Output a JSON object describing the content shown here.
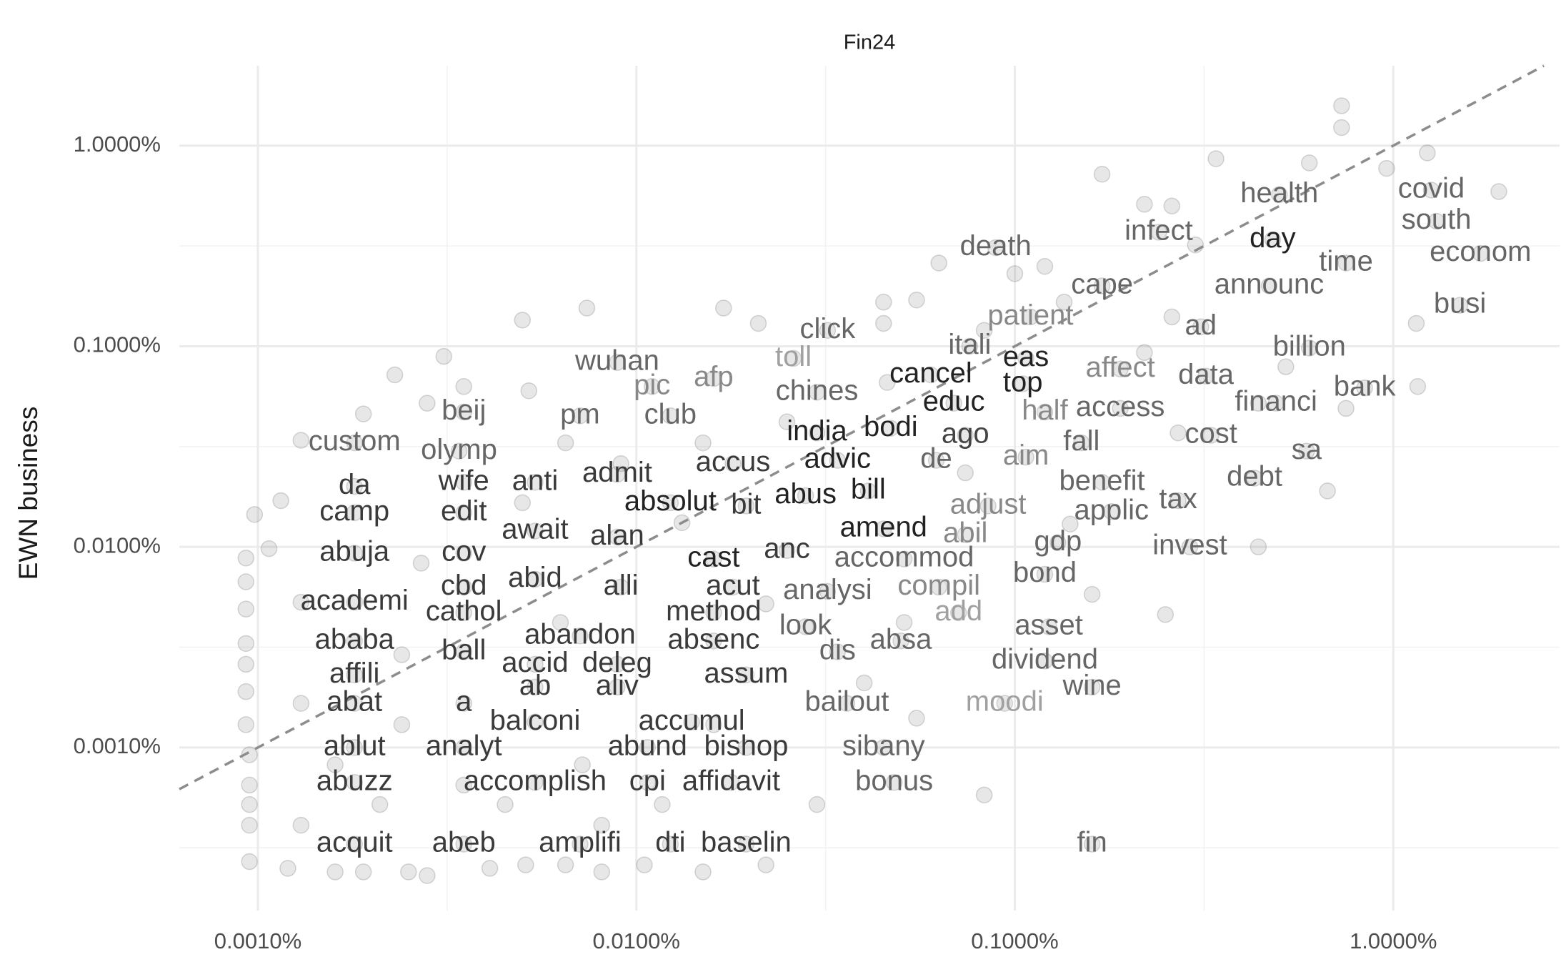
{
  "chart_data": {
    "type": "scatter",
    "title": "Fin24",
    "ylabel": "EWN business",
    "xscale": "log",
    "yscale": "log",
    "xlim": [
      0.00062,
      2.75
    ],
    "ylim": [
      0.000154,
      2.5
    ],
    "xticks": [
      {
        "value": 0.001,
        "label": "0.0010%"
      },
      {
        "value": 0.01,
        "label": "0.0100%"
      },
      {
        "value": 0.1,
        "label": "0.1000%"
      },
      {
        "value": 1,
        "label": "1.0000%"
      }
    ],
    "yticks": [
      {
        "value": 0.001,
        "label": "0.0010%"
      },
      {
        "value": 0.01,
        "label": "0.0100%"
      },
      {
        "value": 0.1,
        "label": "0.1000%"
      },
      {
        "value": 1,
        "label": "1.0000%"
      }
    ],
    "grid": true,
    "diagonal": true,
    "point_color": "#7a7a7a",
    "x": [
      0.73,
      0.73,
      1.23,
      0.34,
      0.6,
      0.17,
      0.96,
      1.9,
      0.22,
      0.26,
      0.3,
      0.12,
      0.063,
      0.1,
      1.15,
      1.16,
      0.75,
      0.67,
      0.44,
      0.25,
      0.16,
      0.083,
      0.03,
      0.055,
      0.055,
      0.045,
      0.045,
      0.021,
      0.017,
      0.0074,
      0.005,
      0.0052,
      0.0035,
      0.0031,
      0.0023,
      0.0028,
      0.0019,
      0.0013,
      0.00115,
      0.00098,
      0.00107,
      0.00093,
      0.00093,
      0.00093,
      0.00093,
      0.00093,
      0.00093,
      0.00093,
      0.00095,
      0.00095,
      0.00095,
      0.00095,
      0.00095,
      0.0012,
      0.0016,
      0.0019,
      0.0025,
      0.0028,
      0.0041,
      0.0051,
      0.0065,
      0.0081,
      0.0105,
      0.015,
      0.022,
      0.22,
      0.26,
      0.44,
      0.52,
      0.27,
      0.14,
      0.074,
      0.051,
      0.04,
      0.016,
      0.0072,
      0.0117,
      0.0045,
      0.0021,
      0.0013,
      0.0027,
      0.0063,
      0.005,
      0.0132,
      0.022,
      0.025,
      0.015,
      0.0091,
      0.0065,
      0.046,
      0.083,
      0.135,
      0.0013,
      0.0013,
      0.0024,
      0.0024,
      0.0016,
      0.0035,
      0.0081
    ],
    "y": [
      1.58,
      1.23,
      0.92,
      0.86,
      0.82,
      0.72,
      0.77,
      0.59,
      0.51,
      0.5,
      0.32,
      0.25,
      0.26,
      0.23,
      0.13,
      0.063,
      0.049,
      0.019,
      0.01,
      0.0046,
      0.0058,
      0.00058,
      0.00052,
      0.0014,
      0.17,
      0.166,
      0.13,
      0.13,
      0.155,
      0.155,
      0.135,
      0.06,
      0.063,
      0.089,
      0.072,
      0.052,
      0.046,
      0.034,
      0.017,
      0.0145,
      0.0098,
      0.0088,
      0.0067,
      0.0049,
      0.0033,
      0.0026,
      0.0019,
      0.0013,
      0.00092,
      0.00065,
      0.00052,
      0.00041,
      0.00027,
      0.00025,
      0.00024,
      0.00024,
      0.00024,
      0.00023,
      0.00025,
      0.00026,
      0.00026,
      0.00024,
      0.00026,
      0.00024,
      0.00026,
      0.093,
      0.14,
      0.052,
      0.079,
      0.037,
      0.013,
      0.0234,
      0.0042,
      0.0021,
      0.0013,
      0.00082,
      0.00052,
      0.00052,
      0.00052,
      0.00041,
      0.0083,
      0.0042,
      0.0166,
      0.0132,
      0.0052,
      0.042,
      0.033,
      0.026,
      0.033,
      0.066,
      0.12,
      0.166,
      0.0053,
      0.00166,
      0.0029,
      0.0013,
      0.00082,
      0.00065,
      0.00041
    ],
    "labels": [
      {
        "text": "health",
        "x": 0.5,
        "y": 0.57,
        "color": "#666666"
      },
      {
        "text": "covid",
        "x": 1.26,
        "y": 0.6,
        "color": "#666666"
      },
      {
        "text": "south",
        "x": 1.3,
        "y": 0.42,
        "color": "#666666"
      },
      {
        "text": "infect",
        "x": 0.24,
        "y": 0.37,
        "color": "#666666"
      },
      {
        "text": "day",
        "x": 0.48,
        "y": 0.34,
        "color": "#222222"
      },
      {
        "text": "death",
        "x": 0.089,
        "y": 0.31,
        "color": "#666666"
      },
      {
        "text": "econom",
        "x": 1.7,
        "y": 0.29,
        "color": "#666666"
      },
      {
        "text": "time",
        "x": 0.75,
        "y": 0.26,
        "color": "#666666"
      },
      {
        "text": "cape",
        "x": 0.17,
        "y": 0.2,
        "color": "#666666"
      },
      {
        "text": "announc",
        "x": 0.47,
        "y": 0.2,
        "color": "#666666"
      },
      {
        "text": "busi",
        "x": 1.5,
        "y": 0.16,
        "color": "#666666"
      },
      {
        "text": "patient",
        "x": 0.11,
        "y": 0.14,
        "color": "#888888"
      },
      {
        "text": "ad",
        "x": 0.31,
        "y": 0.125,
        "color": "#666666"
      },
      {
        "text": "click",
        "x": 0.032,
        "y": 0.12,
        "color": "#666666"
      },
      {
        "text": "itali",
        "x": 0.076,
        "y": 0.1,
        "color": "#666666"
      },
      {
        "text": "billion",
        "x": 0.6,
        "y": 0.098,
        "color": "#666666"
      },
      {
        "text": "toll",
        "x": 0.026,
        "y": 0.087,
        "color": "#a0a0a0"
      },
      {
        "text": "eas",
        "x": 0.107,
        "y": 0.087,
        "color": "#222222"
      },
      {
        "text": "wuhan",
        "x": 0.0089,
        "y": 0.083,
        "color": "#666666"
      },
      {
        "text": "affect",
        "x": 0.19,
        "y": 0.077,
        "color": "#888888"
      },
      {
        "text": "cancel",
        "x": 0.06,
        "y": 0.072,
        "color": "#222222"
      },
      {
        "text": "data",
        "x": 0.32,
        "y": 0.071,
        "color": "#666666"
      },
      {
        "text": "afp",
        "x": 0.016,
        "y": 0.069,
        "color": "#888888"
      },
      {
        "text": "top",
        "x": 0.105,
        "y": 0.065,
        "color": "#222222"
      },
      {
        "text": "pic",
        "x": 0.011,
        "y": 0.063,
        "color": "#888888"
      },
      {
        "text": "bank",
        "x": 0.84,
        "y": 0.062,
        "color": "#666666"
      },
      {
        "text": "chines",
        "x": 0.03,
        "y": 0.059,
        "color": "#666666"
      },
      {
        "text": "financi",
        "x": 0.49,
        "y": 0.052,
        "color": "#666666"
      },
      {
        "text": "educ",
        "x": 0.069,
        "y": 0.052,
        "color": "#222222"
      },
      {
        "text": "access",
        "x": 0.19,
        "y": 0.049,
        "color": "#666666"
      },
      {
        "text": "half",
        "x": 0.12,
        "y": 0.047,
        "color": "#888888"
      },
      {
        "text": "beij",
        "x": 0.0035,
        "y": 0.047,
        "color": "#666666"
      },
      {
        "text": "pm",
        "x": 0.0071,
        "y": 0.045,
        "color": "#666666"
      },
      {
        "text": "club",
        "x": 0.0123,
        "y": 0.045,
        "color": "#666666"
      },
      {
        "text": "bodi",
        "x": 0.047,
        "y": 0.039,
        "color": "#222222"
      },
      {
        "text": "india",
        "x": 0.03,
        "y": 0.037,
        "color": "#222222"
      },
      {
        "text": "cost",
        "x": 0.33,
        "y": 0.036,
        "color": "#666666"
      },
      {
        "text": "ago",
        "x": 0.074,
        "y": 0.036,
        "color": "#444444"
      },
      {
        "text": "custom",
        "x": 0.0018,
        "y": 0.033,
        "color": "#666666"
      },
      {
        "text": "fall",
        "x": 0.15,
        "y": 0.033,
        "color": "#666666"
      },
      {
        "text": "sa",
        "x": 0.59,
        "y": 0.03,
        "color": "#666666"
      },
      {
        "text": "olymp",
        "x": 0.0034,
        "y": 0.03,
        "color": "#666666"
      },
      {
        "text": "aim",
        "x": 0.107,
        "y": 0.028,
        "color": "#888888"
      },
      {
        "text": "advic",
        "x": 0.034,
        "y": 0.027,
        "color": "#222222"
      },
      {
        "text": "de",
        "x": 0.062,
        "y": 0.027,
        "color": "#666666"
      },
      {
        "text": "accus",
        "x": 0.018,
        "y": 0.026,
        "color": "#3a3a3a"
      },
      {
        "text": "admit",
        "x": 0.0089,
        "y": 0.023,
        "color": "#3a3a3a"
      },
      {
        "text": "debt",
        "x": 0.43,
        "y": 0.022,
        "color": "#666666"
      },
      {
        "text": "benefit",
        "x": 0.17,
        "y": 0.021,
        "color": "#666666"
      },
      {
        "text": "anti",
        "x": 0.0054,
        "y": 0.021,
        "color": "#3a3a3a"
      },
      {
        "text": "wife",
        "x": 0.0035,
        "y": 0.021,
        "color": "#3a3a3a"
      },
      {
        "text": "da",
        "x": 0.0018,
        "y": 0.02,
        "color": "#3a3a3a"
      },
      {
        "text": "bill",
        "x": 0.041,
        "y": 0.019,
        "color": "#222222"
      },
      {
        "text": "abus",
        "x": 0.028,
        "y": 0.018,
        "color": "#222222"
      },
      {
        "text": "tax",
        "x": 0.27,
        "y": 0.017,
        "color": "#666666"
      },
      {
        "text": "absolut",
        "x": 0.0123,
        "y": 0.0166,
        "color": "#222222"
      },
      {
        "text": "bit",
        "x": 0.0195,
        "y": 0.016,
        "color": "#3a3a3a"
      },
      {
        "text": "adjust",
        "x": 0.085,
        "y": 0.016,
        "color": "#888888"
      },
      {
        "text": "applic",
        "x": 0.18,
        "y": 0.015,
        "color": "#666666"
      },
      {
        "text": "camp",
        "x": 0.0018,
        "y": 0.0148,
        "color": "#3a3a3a"
      },
      {
        "text": "edit",
        "x": 0.0035,
        "y": 0.0148,
        "color": "#3a3a3a"
      },
      {
        "text": "await",
        "x": 0.0054,
        "y": 0.012,
        "color": "#3a3a3a"
      },
      {
        "text": "amend",
        "x": 0.045,
        "y": 0.0123,
        "color": "#222222"
      },
      {
        "text": "abil",
        "x": 0.074,
        "y": 0.0115,
        "color": "#888888"
      },
      {
        "text": "alan",
        "x": 0.0089,
        "y": 0.0112,
        "color": "#3a3a3a"
      },
      {
        "text": "gdp",
        "x": 0.13,
        "y": 0.0105,
        "color": "#666666"
      },
      {
        "text": "invest",
        "x": 0.29,
        "y": 0.01,
        "color": "#666666"
      },
      {
        "text": "anc",
        "x": 0.025,
        "y": 0.0096,
        "color": "#3a3a3a"
      },
      {
        "text": "abuja",
        "x": 0.0018,
        "y": 0.0093,
        "color": "#3a3a3a"
      },
      {
        "text": "cov",
        "x": 0.0035,
        "y": 0.0093,
        "color": "#3a3a3a"
      },
      {
        "text": "cast",
        "x": 0.016,
        "y": 0.0087,
        "color": "#222222"
      },
      {
        "text": "accommod",
        "x": 0.051,
        "y": 0.0087,
        "color": "#666666"
      },
      {
        "text": "bond",
        "x": 0.12,
        "y": 0.0073,
        "color": "#666666"
      },
      {
        "text": "abid",
        "x": 0.0054,
        "y": 0.0069,
        "color": "#3a3a3a"
      },
      {
        "text": "cbd",
        "x": 0.0035,
        "y": 0.0063,
        "color": "#3a3a3a"
      },
      {
        "text": "compil",
        "x": 0.063,
        "y": 0.0063,
        "color": "#888888"
      },
      {
        "text": "alli",
        "x": 0.0091,
        "y": 0.0063,
        "color": "#3a3a3a"
      },
      {
        "text": "acut",
        "x": 0.018,
        "y": 0.0063,
        "color": "#3a3a3a"
      },
      {
        "text": "analysi",
        "x": 0.032,
        "y": 0.006,
        "color": "#666666"
      },
      {
        "text": "academi",
        "x": 0.0018,
        "y": 0.0053,
        "color": "#3a3a3a"
      },
      {
        "text": "cathol",
        "x": 0.0035,
        "y": 0.0047,
        "color": "#3a3a3a"
      },
      {
        "text": "method",
        "x": 0.016,
        "y": 0.0047,
        "color": "#3a3a3a"
      },
      {
        "text": "add",
        "x": 0.071,
        "y": 0.0047,
        "color": "#a0a0a0"
      },
      {
        "text": "asset",
        "x": 0.123,
        "y": 0.004,
        "color": "#666666"
      },
      {
        "text": "look",
        "x": 0.028,
        "y": 0.004,
        "color": "#666666"
      },
      {
        "text": "abandon",
        "x": 0.0071,
        "y": 0.0036,
        "color": "#3a3a3a"
      },
      {
        "text": "ababa",
        "x": 0.0018,
        "y": 0.0034,
        "color": "#3a3a3a"
      },
      {
        "text": "absenc",
        "x": 0.016,
        "y": 0.0034,
        "color": "#3a3a3a"
      },
      {
        "text": "absa",
        "x": 0.05,
        "y": 0.0034,
        "color": "#666666"
      },
      {
        "text": "ball",
        "x": 0.0035,
        "y": 0.003,
        "color": "#3a3a3a"
      },
      {
        "text": "dis",
        "x": 0.034,
        "y": 0.003,
        "color": "#666666"
      },
      {
        "text": "accid",
        "x": 0.0054,
        "y": 0.0026,
        "color": "#3a3a3a"
      },
      {
        "text": "deleg",
        "x": 0.0089,
        "y": 0.0026,
        "color": "#3a3a3a"
      },
      {
        "text": "dividend",
        "x": 0.12,
        "y": 0.0027,
        "color": "#666666"
      },
      {
        "text": "affili",
        "x": 0.0018,
        "y": 0.0023,
        "color": "#3a3a3a"
      },
      {
        "text": "assum",
        "x": 0.0195,
        "y": 0.0023,
        "color": "#3a3a3a"
      },
      {
        "text": "ab",
        "x": 0.0054,
        "y": 0.002,
        "color": "#3a3a3a"
      },
      {
        "text": "aliv",
        "x": 0.0089,
        "y": 0.002,
        "color": "#3a3a3a"
      },
      {
        "text": "wine",
        "x": 0.16,
        "y": 0.002,
        "color": "#666666"
      },
      {
        "text": "abat",
        "x": 0.0018,
        "y": 0.00166,
        "color": "#3a3a3a"
      },
      {
        "text": "moodi",
        "x": 0.094,
        "y": 0.00166,
        "color": "#a0a0a0"
      },
      {
        "text": "bailout",
        "x": 0.036,
        "y": 0.00166,
        "color": "#666666"
      },
      {
        "text": "a",
        "x": 0.0035,
        "y": 0.00166,
        "color": "#3a3a3a"
      },
      {
        "text": "balconi",
        "x": 0.0054,
        "y": 0.00134,
        "color": "#3a3a3a"
      },
      {
        "text": "accumul",
        "x": 0.014,
        "y": 0.00134,
        "color": "#3a3a3a"
      },
      {
        "text": "ablut",
        "x": 0.0018,
        "y": 0.001,
        "color": "#3a3a3a"
      },
      {
        "text": "analyt",
        "x": 0.0035,
        "y": 0.001,
        "color": "#3a3a3a"
      },
      {
        "text": "abund",
        "x": 0.0107,
        "y": 0.001,
        "color": "#3a3a3a"
      },
      {
        "text": "bishop",
        "x": 0.0195,
        "y": 0.001,
        "color": "#3a3a3a"
      },
      {
        "text": "sibany",
        "x": 0.045,
        "y": 0.001,
        "color": "#666666"
      },
      {
        "text": "abuzz",
        "x": 0.0018,
        "y": 0.00067,
        "color": "#3a3a3a"
      },
      {
        "text": "accomplish",
        "x": 0.0054,
        "y": 0.00067,
        "color": "#3a3a3a"
      },
      {
        "text": "cpi",
        "x": 0.0107,
        "y": 0.00067,
        "color": "#3a3a3a"
      },
      {
        "text": "affidavit",
        "x": 0.0178,
        "y": 0.00067,
        "color": "#3a3a3a"
      },
      {
        "text": "bonus",
        "x": 0.048,
        "y": 0.00067,
        "color": "#666666"
      },
      {
        "text": "acquit",
        "x": 0.0018,
        "y": 0.00033,
        "color": "#3a3a3a"
      },
      {
        "text": "abeb",
        "x": 0.0035,
        "y": 0.00033,
        "color": "#3a3a3a"
      },
      {
        "text": "amplifi",
        "x": 0.0071,
        "y": 0.00033,
        "color": "#3a3a3a"
      },
      {
        "text": "dti",
        "x": 0.0123,
        "y": 0.00033,
        "color": "#3a3a3a"
      },
      {
        "text": "baselin",
        "x": 0.0195,
        "y": 0.00033,
        "color": "#3a3a3a"
      },
      {
        "text": "fin",
        "x": 0.16,
        "y": 0.00033,
        "color": "#666666"
      }
    ]
  }
}
